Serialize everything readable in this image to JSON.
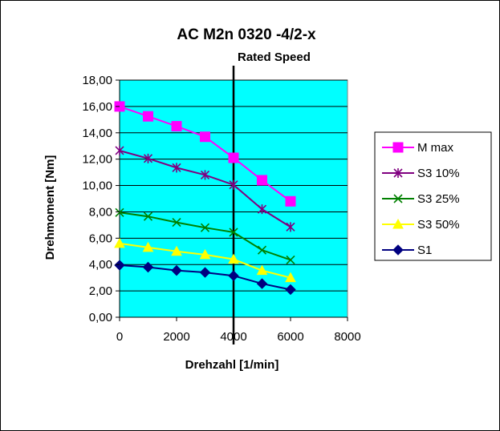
{
  "chart_data": {
    "type": "line",
    "title": "AC M2n 0320 -4/2-x",
    "xlabel": "Drehzahl [1/min]",
    "ylabel": "Drehmoment [Nm]",
    "xlim": [
      0,
      8000
    ],
    "ylim": [
      0,
      18
    ],
    "x_ticks": [
      "0",
      "2000",
      "4000",
      "6000",
      "8000"
    ],
    "y_ticks": [
      "0,00",
      "2,00",
      "4,00",
      "6,00",
      "8,00",
      "10,00",
      "12,00",
      "14,00",
      "16,00",
      "18,00"
    ],
    "plot_background": "#00ffff",
    "grid": "horizontal",
    "legend_position": "right",
    "annotation": {
      "label": "Rated Speed",
      "x": 4000
    },
    "x": [
      0,
      1000,
      2000,
      3000,
      4000,
      5000,
      6000
    ],
    "series": [
      {
        "name": "M max",
        "color": "#ff00ff",
        "marker": "square",
        "values": [
          16.0,
          15.25,
          14.5,
          13.7,
          12.1,
          10.4,
          8.8
        ]
      },
      {
        "name": "S3 10%",
        "color": "#800080",
        "marker": "star",
        "values": [
          12.65,
          12.05,
          11.35,
          10.8,
          10.05,
          8.2,
          6.85
        ]
      },
      {
        "name": "S3 25%",
        "color": "#008000",
        "marker": "x",
        "values": [
          7.95,
          7.65,
          7.2,
          6.8,
          6.45,
          5.1,
          4.35
        ]
      },
      {
        "name": "S3 50%",
        "color": "#ffff00",
        "marker": "triangle",
        "values": [
          5.6,
          5.3,
          5.0,
          4.75,
          4.4,
          3.55,
          3.0
        ]
      },
      {
        "name": "S1",
        "color": "#000080",
        "marker": "diamond",
        "values": [
          3.95,
          3.8,
          3.55,
          3.4,
          3.15,
          2.55,
          2.1
        ]
      }
    ]
  }
}
